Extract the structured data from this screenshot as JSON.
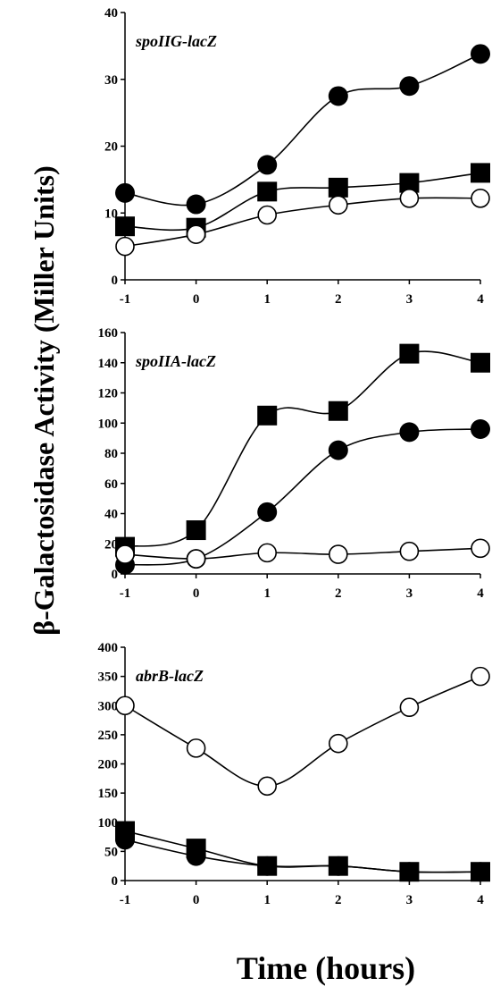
{
  "figure": {
    "ylabel": "β-Galactosidase Activity (Miller Units)",
    "xlabel": "Time (hours)"
  },
  "chart_data": [
    {
      "type": "line",
      "title": "spoIIG-lacZ",
      "x": [
        -1,
        0,
        1,
        2,
        3,
        4
      ],
      "xticks": [
        "-1",
        "0",
        "1",
        "2",
        "3",
        "4"
      ],
      "ylim": [
        0,
        40
      ],
      "yticks": [
        0,
        10,
        20,
        30,
        40
      ],
      "series": [
        {
          "marker": "filled-circle",
          "values": [
            13,
            11.3,
            17.2,
            27.5,
            29,
            33.8
          ]
        },
        {
          "marker": "filled-square",
          "values": [
            8,
            7.8,
            13.2,
            13.8,
            14.5,
            16
          ]
        },
        {
          "marker": "open-circle",
          "values": [
            5,
            6.8,
            9.7,
            11.2,
            12.2,
            12.2
          ]
        }
      ]
    },
    {
      "type": "line",
      "title": "spoIIA-lacZ",
      "x": [
        -1,
        0,
        1,
        2,
        3,
        4
      ],
      "xticks": [
        "-1",
        "0",
        "1",
        "2",
        "3",
        "4"
      ],
      "ylim": [
        0,
        160
      ],
      "yticks": [
        0,
        20,
        40,
        60,
        80,
        100,
        120,
        140,
        160
      ],
      "series": [
        {
          "marker": "filled-circle",
          "values": [
            6,
            10,
            41,
            82,
            94,
            96
          ]
        },
        {
          "marker": "filled-square",
          "values": [
            18,
            29,
            105,
            108,
            146,
            140
          ]
        },
        {
          "marker": "open-circle",
          "values": [
            13,
            10,
            14,
            13,
            15,
            17
          ]
        }
      ]
    },
    {
      "type": "line",
      "title": "abrB-lacZ",
      "x": [
        -1,
        0,
        1,
        2,
        3,
        4
      ],
      "xticks": [
        "-1",
        "0",
        "1",
        "2",
        "3",
        "4"
      ],
      "ylim": [
        0,
        400
      ],
      "yticks": [
        0,
        50,
        100,
        150,
        200,
        250,
        300,
        350,
        400
      ],
      "series": [
        {
          "marker": "filled-circle",
          "values": [
            70,
            42,
            25,
            25,
            15,
            15
          ]
        },
        {
          "marker": "filled-square",
          "values": [
            85,
            55,
            25,
            25,
            15,
            15
          ]
        },
        {
          "marker": "open-circle",
          "values": [
            300,
            227,
            162,
            235,
            297,
            350
          ]
        }
      ]
    }
  ]
}
